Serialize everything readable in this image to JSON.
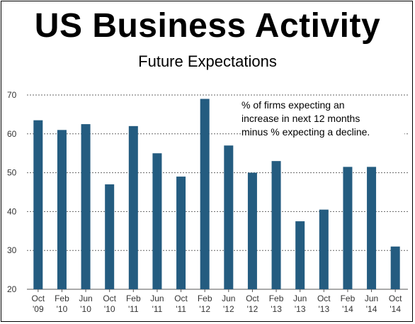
{
  "colors": {
    "bar": "#245c80",
    "grid": "#666666",
    "text": "#000000"
  },
  "chart_data": {
    "type": "bar",
    "title": "US Business Activity",
    "subtitle": "Future Expectations",
    "annotation": [
      "% of firms expecting an",
      "increase in next 12 months",
      "minus % expecting a decline."
    ],
    "categories": [
      [
        "Oct",
        "'09"
      ],
      [
        "Feb",
        "'10"
      ],
      [
        "Jun",
        "'10"
      ],
      [
        "Oct",
        "'10"
      ],
      [
        "Feb",
        "'11"
      ],
      [
        "Jun",
        "'11"
      ],
      [
        "Oct",
        "'11"
      ],
      [
        "Feb",
        "'12"
      ],
      [
        "Jun",
        "'12"
      ],
      [
        "Oct",
        "'12"
      ],
      [
        "Feb",
        "'13"
      ],
      [
        "Jun",
        "'13"
      ],
      [
        "Oct",
        "'13"
      ],
      [
        "Feb",
        "'14"
      ],
      [
        "Jun",
        "'14"
      ],
      [
        "Oct",
        "'14"
      ]
    ],
    "values": [
      63.5,
      61.0,
      62.5,
      47.0,
      62.0,
      55.0,
      49.0,
      69.0,
      57.0,
      50.0,
      53.0,
      37.5,
      40.5,
      51.5,
      51.5,
      31.0
    ],
    "yticks": [
      20,
      30,
      40,
      50,
      60,
      70
    ],
    "ylim": [
      20,
      70
    ],
    "grid": "horizontal dashed"
  }
}
